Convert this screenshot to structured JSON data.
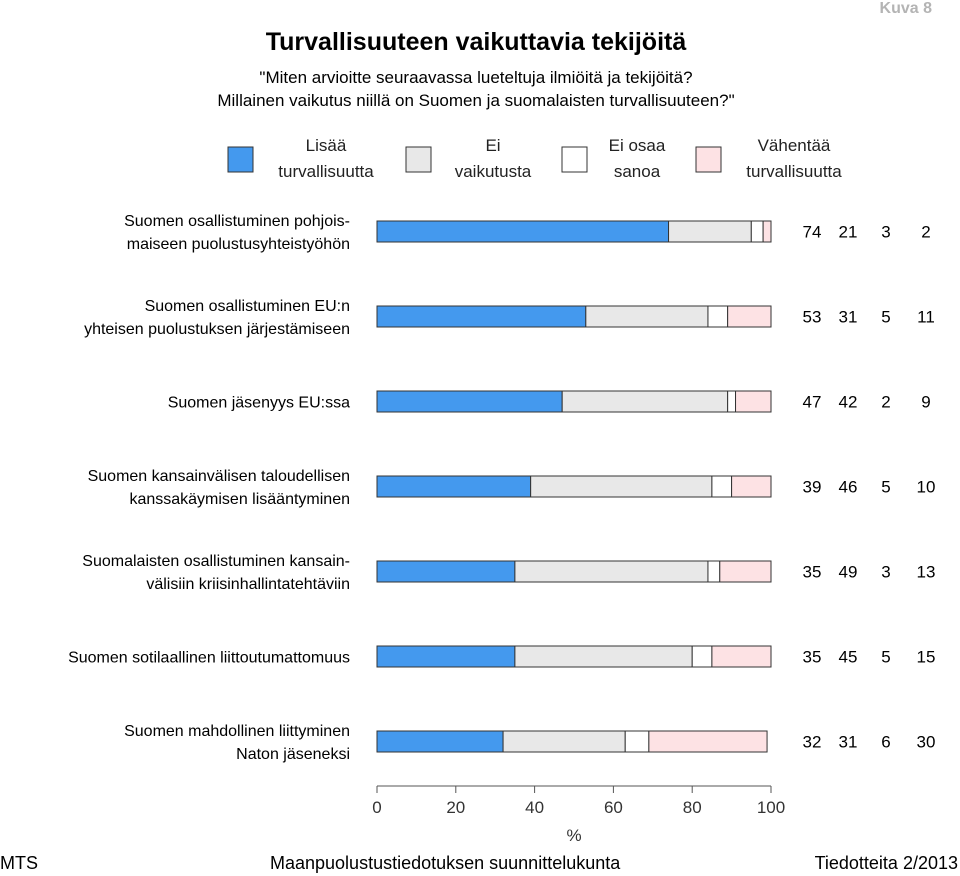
{
  "figure_label": "Kuva 8",
  "chart_data": {
    "type": "bar",
    "orientation": "horizontal",
    "stacked": true,
    "title": "Turvallisuuteen vaikuttavia tekijöitä",
    "subtitle_lines": [
      "\"Miten arvioitte seuraavassa lueteltuja ilmiöitä ja tekijöitä?",
      "Millainen vaikutus niillä on Suomen ja suomalaisten turvallisuuteen?\""
    ],
    "xlabel": "%",
    "xlim": [
      0,
      100
    ],
    "xticks": [
      0,
      20,
      40,
      60,
      80,
      100
    ],
    "grid": false,
    "legend_position": "top",
    "categories": [
      [
        "Suomen osallistuminen pohjois-",
        "maiseen puolustusyhteistyöhön"
      ],
      [
        "Suomen osallistuminen EU:n",
        "yhteisen puolustuksen järjestämiseen"
      ],
      [
        "Suomen jäsenyys EU:ssa"
      ],
      [
        "Suomen kansainvälisen taloudellisen",
        "kanssakäymisen lisääntyminen"
      ],
      [
        "Suomalaisten osallistuminen kansain-",
        "välisiin kriisinhallintatehtäviin"
      ],
      [
        "Suomen sotilaallinen liittoutumattomuus"
      ],
      [
        "Suomen mahdollinen liittyminen",
        "Naton jäseneksi"
      ]
    ],
    "series": [
      {
        "name": [
          "Lisää",
          "turvallisuutta"
        ],
        "color": "#4499ee",
        "values": [
          74,
          53,
          47,
          39,
          35,
          35,
          32
        ]
      },
      {
        "name": [
          "Ei",
          "vaikutusta"
        ],
        "color": "#e8e8e8",
        "values": [
          21,
          31,
          42,
          46,
          49,
          45,
          31
        ]
      },
      {
        "name": [
          "Ei osaa",
          "sanoa"
        ],
        "color": "#ffffff",
        "values": [
          3,
          5,
          2,
          5,
          3,
          5,
          6
        ]
      },
      {
        "name": [
          "Vähentää",
          "turvallisuutta"
        ],
        "color": "#fde2e4",
        "values": [
          2,
          11,
          9,
          10,
          13,
          15,
          30
        ]
      }
    ]
  },
  "footer": {
    "left": "MTS",
    "center": "Maanpuolustustiedotuksen suunnittelukunta",
    "right": "Tiedotteita 2/2013"
  }
}
